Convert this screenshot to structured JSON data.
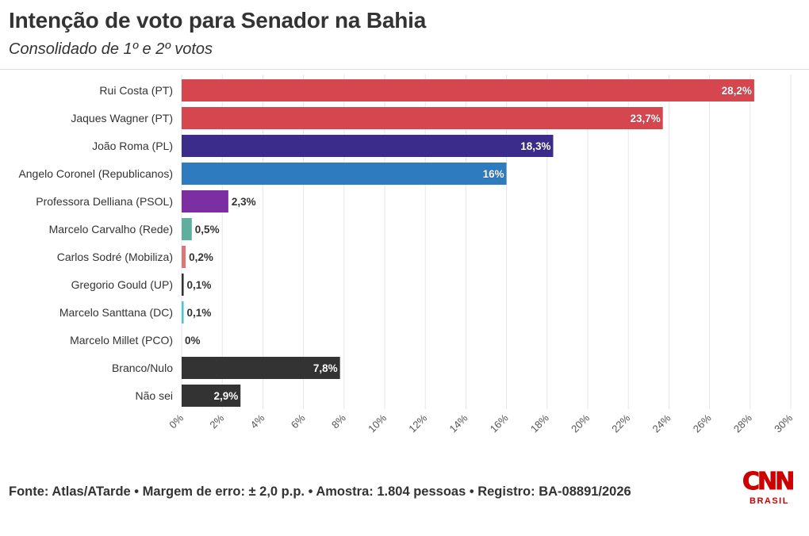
{
  "chart_data": {
    "type": "bar",
    "orientation": "horizontal",
    "title": "Intenção de voto para Senador na Bahia",
    "subtitle": "Consolidado de 1º e 2º votos",
    "categories": [
      "Rui Costa (PT)",
      "Jaques Wagner (PT)",
      "João Roma (PL)",
      "Angelo Coronel (Republicanos)",
      "Professora Delliana (PSOL)",
      "Marcelo Carvalho (Rede)",
      "Carlos Sodré (Mobiliza)",
      "Gregorio Gould (UP)",
      "Marcelo Santtana (DC)",
      "Marcelo Millet (PCO)",
      "Branco/Nulo",
      "Não sei"
    ],
    "values": [
      28.2,
      23.7,
      18.3,
      16,
      2.3,
      0.5,
      0.2,
      0.1,
      0.1,
      0,
      7.8,
      2.9
    ],
    "value_labels": [
      "28,2%",
      "23,7%",
      "18,3%",
      "16%",
      "2,3%",
      "0,5%",
      "0,2%",
      "0,1%",
      "0,1%",
      "0%",
      "7,8%",
      "2,9%"
    ],
    "colors": [
      "#d6464f",
      "#d6464f",
      "#3b2c8c",
      "#2f7bbf",
      "#7b2fa3",
      "#5fae9e",
      "#d9787a",
      "#333333",
      "#4fc3d9",
      "#999999",
      "#333333",
      "#333333"
    ],
    "xlim": [
      0,
      30
    ],
    "xticks": [
      0,
      2,
      4,
      6,
      8,
      10,
      12,
      14,
      16,
      18,
      20,
      22,
      24,
      26,
      28,
      30
    ],
    "xtick_labels": [
      "0%",
      "2%",
      "4%",
      "6%",
      "8%",
      "10%",
      "12%",
      "14%",
      "16%",
      "18%",
      "20%",
      "22%",
      "24%",
      "26%",
      "28%",
      "30%"
    ],
    "xlabel": "",
    "ylabel": "",
    "grid": true,
    "legend": "none"
  },
  "footer": {
    "source": "Fonte: Atlas/ATarde • Margem de erro: ± 2,0 p.p. • Amostra: 1.804 pessoas • Registro: BA-08891/2026"
  },
  "logo": {
    "main": "CNN",
    "sub": "BRASIL",
    "color": "#cc0000"
  }
}
